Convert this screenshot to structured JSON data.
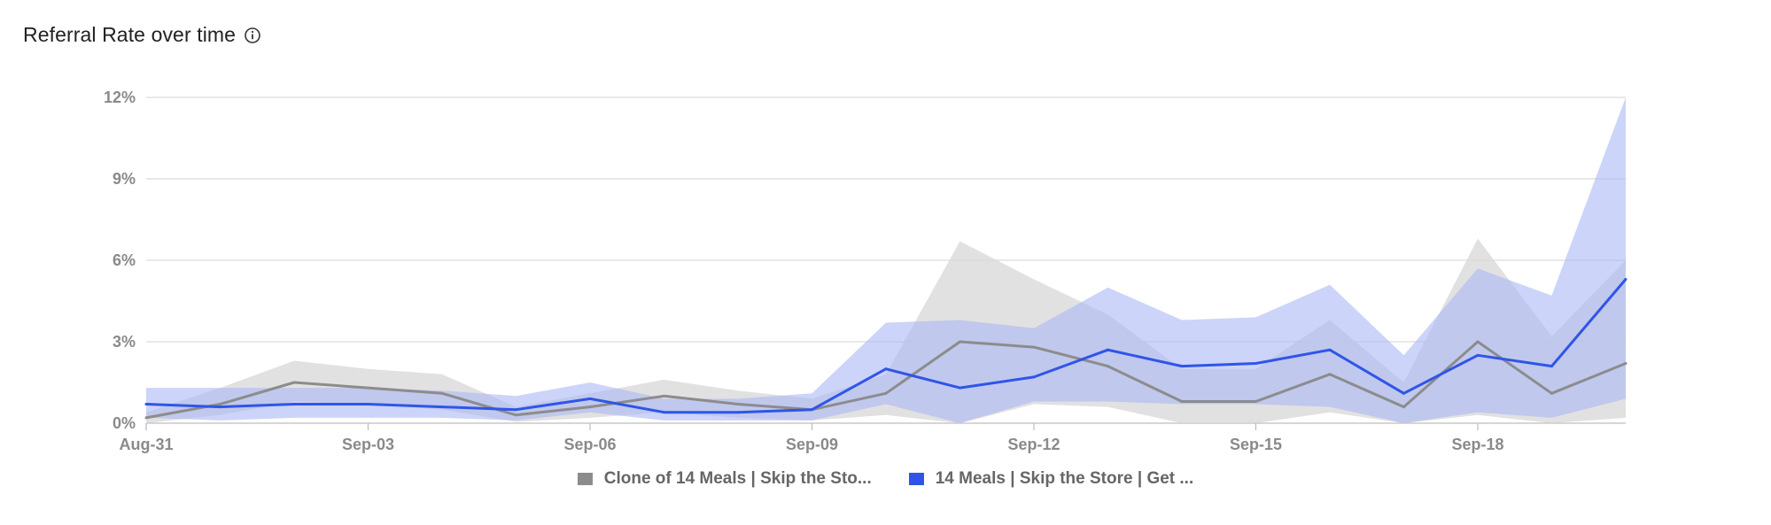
{
  "header": {
    "title": "Referral Rate over time",
    "info_icon": "info-circle-icon"
  },
  "colors": {
    "series_gray_line": "#8c8c8c",
    "series_gray_band": "#d7d7d7",
    "series_blue_line": "#2f55e8",
    "series_blue_band": "#aab8f5",
    "grid": "#dcdcdc",
    "axis": "#bdbdbd"
  },
  "chart_data": {
    "type": "line",
    "title": "Referral Rate over time",
    "xlabel": "",
    "ylabel": "",
    "ylim": [
      0,
      12
    ],
    "yticks": [
      "0%",
      "3%",
      "6%",
      "9%",
      "12%"
    ],
    "xticks": [
      "Aug-31",
      "Sep-03",
      "Sep-06",
      "Sep-09",
      "Sep-12",
      "Sep-15",
      "Sep-18"
    ],
    "x": [
      "Aug-31",
      "Sep-01",
      "Sep-02",
      "Sep-03",
      "Sep-04",
      "Sep-05",
      "Sep-06",
      "Sep-07",
      "Sep-08",
      "Sep-09",
      "Sep-10",
      "Sep-11",
      "Sep-12",
      "Sep-13",
      "Sep-14",
      "Sep-15",
      "Sep-16",
      "Sep-17",
      "Sep-18",
      "Sep-19",
      "Sep-20"
    ],
    "grid": true,
    "legend_position": "bottom-center",
    "series": [
      {
        "name": "Clone of 14 Meals | Skip the Sto...",
        "color": "#8c8c8c",
        "values": [
          0.2,
          0.7,
          1.5,
          1.3,
          1.1,
          0.3,
          0.6,
          1.0,
          0.7,
          0.5,
          1.1,
          3.0,
          2.8,
          2.1,
          0.8,
          0.8,
          1.8,
          0.6,
          3.0,
          1.1,
          2.2
        ],
        "upper": [
          0.4,
          1.3,
          2.3,
          2.0,
          1.8,
          0.6,
          1.1,
          1.6,
          1.2,
          0.9,
          1.8,
          6.7,
          5.3,
          4.0,
          2.0,
          2.0,
          3.8,
          1.5,
          6.8,
          3.2,
          6.0
        ],
        "lower": [
          0.0,
          0.3,
          0.8,
          0.7,
          0.5,
          0.05,
          0.2,
          0.4,
          0.2,
          0.1,
          0.3,
          0.0,
          0.7,
          0.6,
          0.0,
          0.0,
          0.4,
          0.0,
          0.3,
          0.0,
          0.2
        ]
      },
      {
        "name": "14 Meals | Skip the Store | Get ...",
        "color": "#2f55e8",
        "values": [
          0.7,
          0.6,
          0.7,
          0.7,
          0.6,
          0.5,
          0.9,
          0.4,
          0.4,
          0.5,
          2.0,
          1.3,
          1.7,
          2.7,
          2.1,
          2.2,
          2.7,
          1.1,
          2.5,
          2.1,
          5.3
        ],
        "upper": [
          1.3,
          1.3,
          1.3,
          1.3,
          1.2,
          1.0,
          1.5,
          0.9,
          0.9,
          1.1,
          3.7,
          3.8,
          3.5,
          5.0,
          3.8,
          3.9,
          5.1,
          2.5,
          5.7,
          4.7,
          12.0
        ],
        "lower": [
          0.2,
          0.1,
          0.2,
          0.2,
          0.2,
          0.1,
          0.4,
          0.1,
          0.1,
          0.1,
          0.7,
          0.0,
          0.8,
          0.8,
          0.7,
          0.7,
          0.6,
          0.0,
          0.4,
          0.2,
          0.9
        ]
      }
    ]
  },
  "legend": {
    "items": [
      {
        "label": "Clone of 14 Meals | Skip the Sto...",
        "color": "#8c8c8c"
      },
      {
        "label": "14 Meals | Skip the Store | Get ...",
        "color": "#2f55e8"
      }
    ]
  }
}
